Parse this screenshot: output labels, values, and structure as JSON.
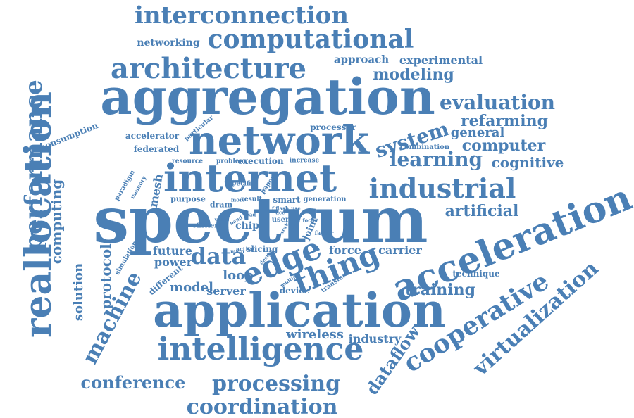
{
  "word_cloud": {
    "color": "#4a7fb5",
    "words": [
      {
        "id": "spectrum",
        "text": "spectrum"
      },
      {
        "id": "aggregation",
        "text": "aggregation"
      },
      {
        "id": "application",
        "text": "application"
      },
      {
        "id": "reallocation",
        "text": "reallocation"
      },
      {
        "id": "network",
        "text": "network"
      },
      {
        "id": "internet",
        "text": "internet"
      },
      {
        "id": "acceleration",
        "text": "acceleration"
      },
      {
        "id": "intelligence",
        "text": "intelligence"
      },
      {
        "id": "architecture",
        "text": "architecture"
      },
      {
        "id": "computational",
        "text": "computational"
      },
      {
        "id": "interconnection",
        "text": "interconnection"
      },
      {
        "id": "performance",
        "text": "performance"
      },
      {
        "id": "industrial",
        "text": "industrial"
      },
      {
        "id": "cooperative",
        "text": "cooperative"
      },
      {
        "id": "edge",
        "text": "edge"
      },
      {
        "id": "thing",
        "text": "thing"
      },
      {
        "id": "machine",
        "text": "machine"
      },
      {
        "id": "processing",
        "text": "processing"
      },
      {
        "id": "coordination",
        "text": "coordination"
      },
      {
        "id": "virtualization",
        "text": "virtualization"
      },
      {
        "id": "data",
        "text": "data"
      },
      {
        "id": "system",
        "text": "system"
      },
      {
        "id": "learning",
        "text": "learning"
      },
      {
        "id": "evaluation",
        "text": "evaluation"
      },
      {
        "id": "conference",
        "text": "conference"
      },
      {
        "id": "computing",
        "text": "computing"
      },
      {
        "id": "modeling",
        "text": "modeling"
      },
      {
        "id": "refarming",
        "text": "refarming"
      },
      {
        "id": "computer",
        "text": "computer"
      },
      {
        "id": "artificial",
        "text": "artificial"
      },
      {
        "id": "training",
        "text": "training"
      },
      {
        "id": "dataflow",
        "text": "dataflow"
      },
      {
        "id": "wireless",
        "text": "wireless"
      },
      {
        "id": "protocol",
        "text": "protocol"
      },
      {
        "id": "solution",
        "text": "solution"
      },
      {
        "id": "cognitive",
        "text": "cognitive"
      },
      {
        "id": "general",
        "text": "general"
      },
      {
        "id": "industry",
        "text": "industry"
      },
      {
        "id": "experimental",
        "text": "experimental"
      },
      {
        "id": "approach",
        "text": "approach"
      },
      {
        "id": "networking",
        "text": "networking"
      },
      {
        "id": "model",
        "text": "model"
      },
      {
        "id": "loop",
        "text": "loop"
      },
      {
        "id": "server",
        "text": "server"
      },
      {
        "id": "future",
        "text": "future"
      },
      {
        "id": "power",
        "text": "power"
      },
      {
        "id": "force",
        "text": "force"
      },
      {
        "id": "carrier",
        "text": "carrier"
      },
      {
        "id": "mesh",
        "text": "mesh"
      },
      {
        "id": "federated",
        "text": "federated"
      },
      {
        "id": "processor",
        "text": "processor"
      },
      {
        "id": "execution",
        "text": "execution"
      },
      {
        "id": "consumption",
        "text": "consumption"
      },
      {
        "id": "accelerator",
        "text": "accelerator"
      },
      {
        "id": "different",
        "text": "different"
      },
      {
        "id": "device",
        "text": "device"
      },
      {
        "id": "technique",
        "text": "technique"
      },
      {
        "id": "combination",
        "text": "combination"
      },
      {
        "id": "particular",
        "text": "particular"
      },
      {
        "id": "resource",
        "text": "resource"
      },
      {
        "id": "problem",
        "text": "problem"
      },
      {
        "id": "increase",
        "text": "increase"
      },
      {
        "id": "purpose",
        "text": "purpose"
      },
      {
        "id": "specific",
        "text": "specific"
      },
      {
        "id": "paper",
        "text": "paper"
      },
      {
        "id": "dram",
        "text": "dram"
      },
      {
        "id": "more",
        "text": "more"
      },
      {
        "id": "result",
        "text": "result"
      },
      {
        "id": "smart",
        "text": "smart"
      },
      {
        "id": "generation",
        "text": "generation"
      },
      {
        "id": "chip",
        "text": "chip"
      },
      {
        "id": "joint",
        "text": "joint"
      },
      {
        "id": "slicing",
        "text": "slicing"
      },
      {
        "id": "active",
        "text": "active"
      },
      {
        "id": "efficient",
        "text": "efficient"
      },
      {
        "id": "simulation",
        "text": "simulation"
      },
      {
        "id": "paradigm",
        "text": "paradigm"
      },
      {
        "id": "memory",
        "text": "memory"
      },
      {
        "id": "transfer",
        "text": "transfer"
      },
      {
        "id": "multiple",
        "text": "multiple"
      },
      {
        "id": "user",
        "text": "user"
      },
      {
        "id": "focus",
        "text": "focus"
      },
      {
        "id": "factor",
        "text": "factor"
      },
      {
        "id": "value",
        "text": "value"
      },
      {
        "id": "main",
        "text": "main"
      },
      {
        "id": "design",
        "text": "design"
      },
      {
        "id": "band",
        "text": "band"
      },
      {
        "id": "ace",
        "text": "ace"
      },
      {
        "id": "work",
        "text": "work"
      },
      {
        "id": "dual",
        "text": "dual"
      },
      {
        "id": "flash",
        "text": "f flash"
      },
      {
        "id": "use",
        "text": "use"
      },
      {
        "id": "lead",
        "text": "lead"
      }
    ]
  }
}
